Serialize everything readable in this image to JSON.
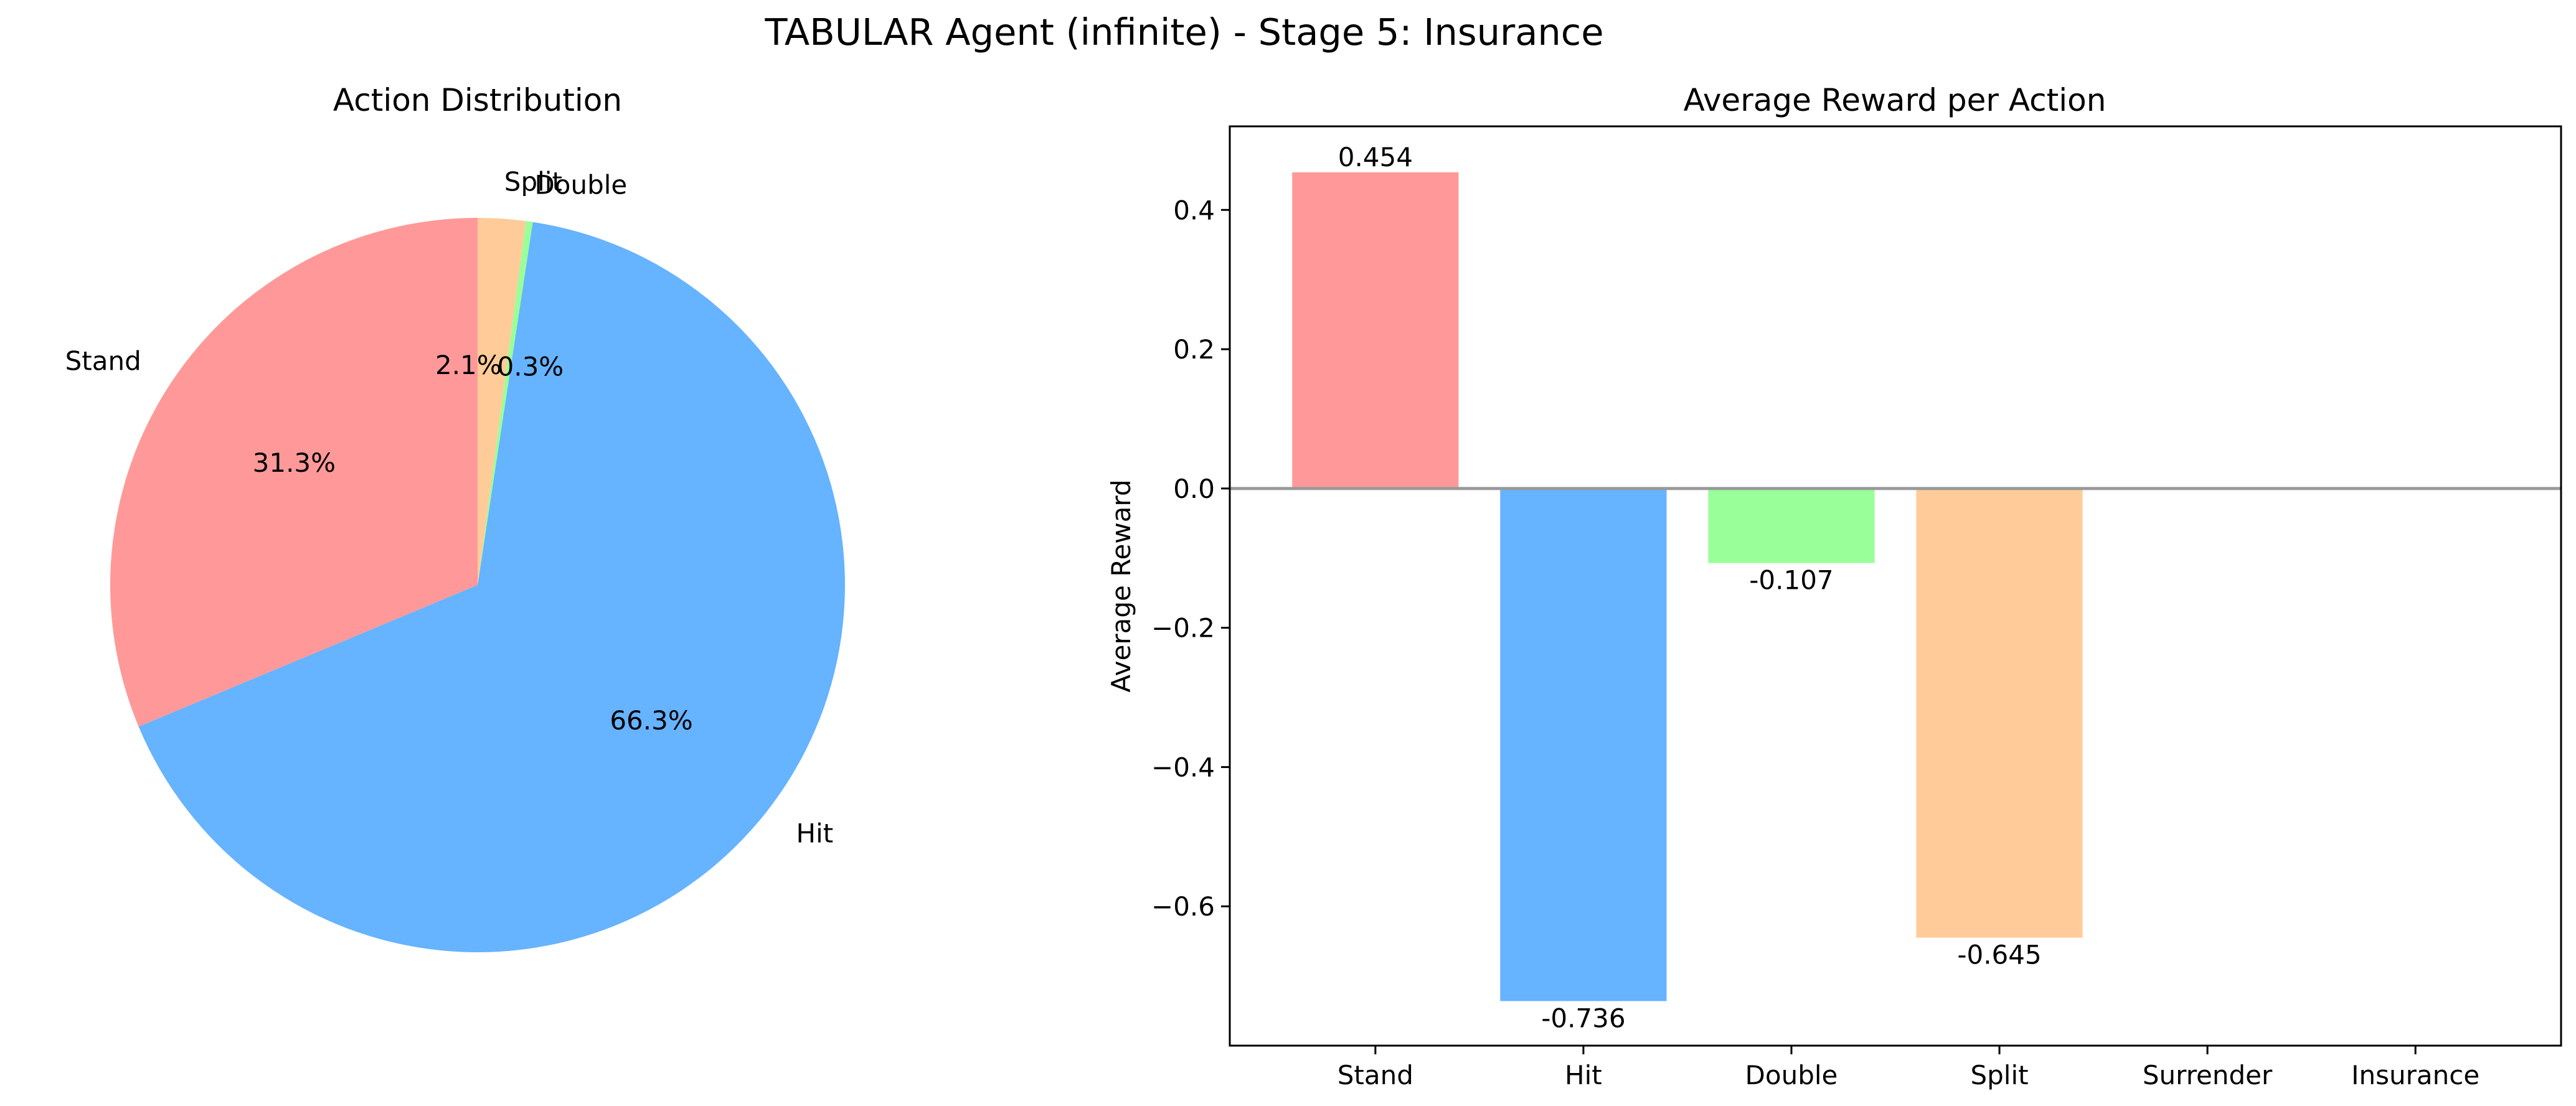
{
  "title": "TABULAR Agent (infinite) - Stage 5: Insurance",
  "chart_data": [
    {
      "type": "pie",
      "title": "Action Distribution",
      "labels": [
        "Stand",
        "Hit",
        "Double",
        "Split"
      ],
      "values": [
        31.3,
        66.3,
        0.3,
        2.1
      ],
      "pct_labels": [
        "31.3%",
        "66.3%",
        "0.3%",
        "2.1%"
      ],
      "colors": [
        "#ff9999",
        "#66b3ff",
        "#99ff99",
        "#ffcc99"
      ],
      "start_angle_deg": 90,
      "direction": "counterclockwise"
    },
    {
      "type": "bar",
      "title": "Average Reward per Action",
      "categories": [
        "Stand",
        "Hit",
        "Double",
        "Split",
        "Surrender",
        "Insurance"
      ],
      "values": [
        0.454,
        -0.736,
        -0.107,
        -0.645,
        null,
        null
      ],
      "value_labels": [
        "0.454",
        "-0.736",
        "-0.107",
        "-0.645",
        "",
        ""
      ],
      "colors": [
        "#ff9999",
        "#66b3ff",
        "#99ff99",
        "#ffcc99",
        "#ff99cc",
        "#c2c2f0"
      ],
      "ylabel": "Average Reward",
      "xlabel": "",
      "ylim": [
        -0.8,
        0.52
      ],
      "yticks": [
        -0.6,
        -0.4,
        -0.2,
        0.0,
        0.2,
        0.4
      ],
      "ytick_labels": [
        "−0.6",
        "−0.4",
        "−0.2",
        "0.0",
        "0.2",
        "0.4"
      ],
      "zero_line": true,
      "grid": false
    }
  ]
}
